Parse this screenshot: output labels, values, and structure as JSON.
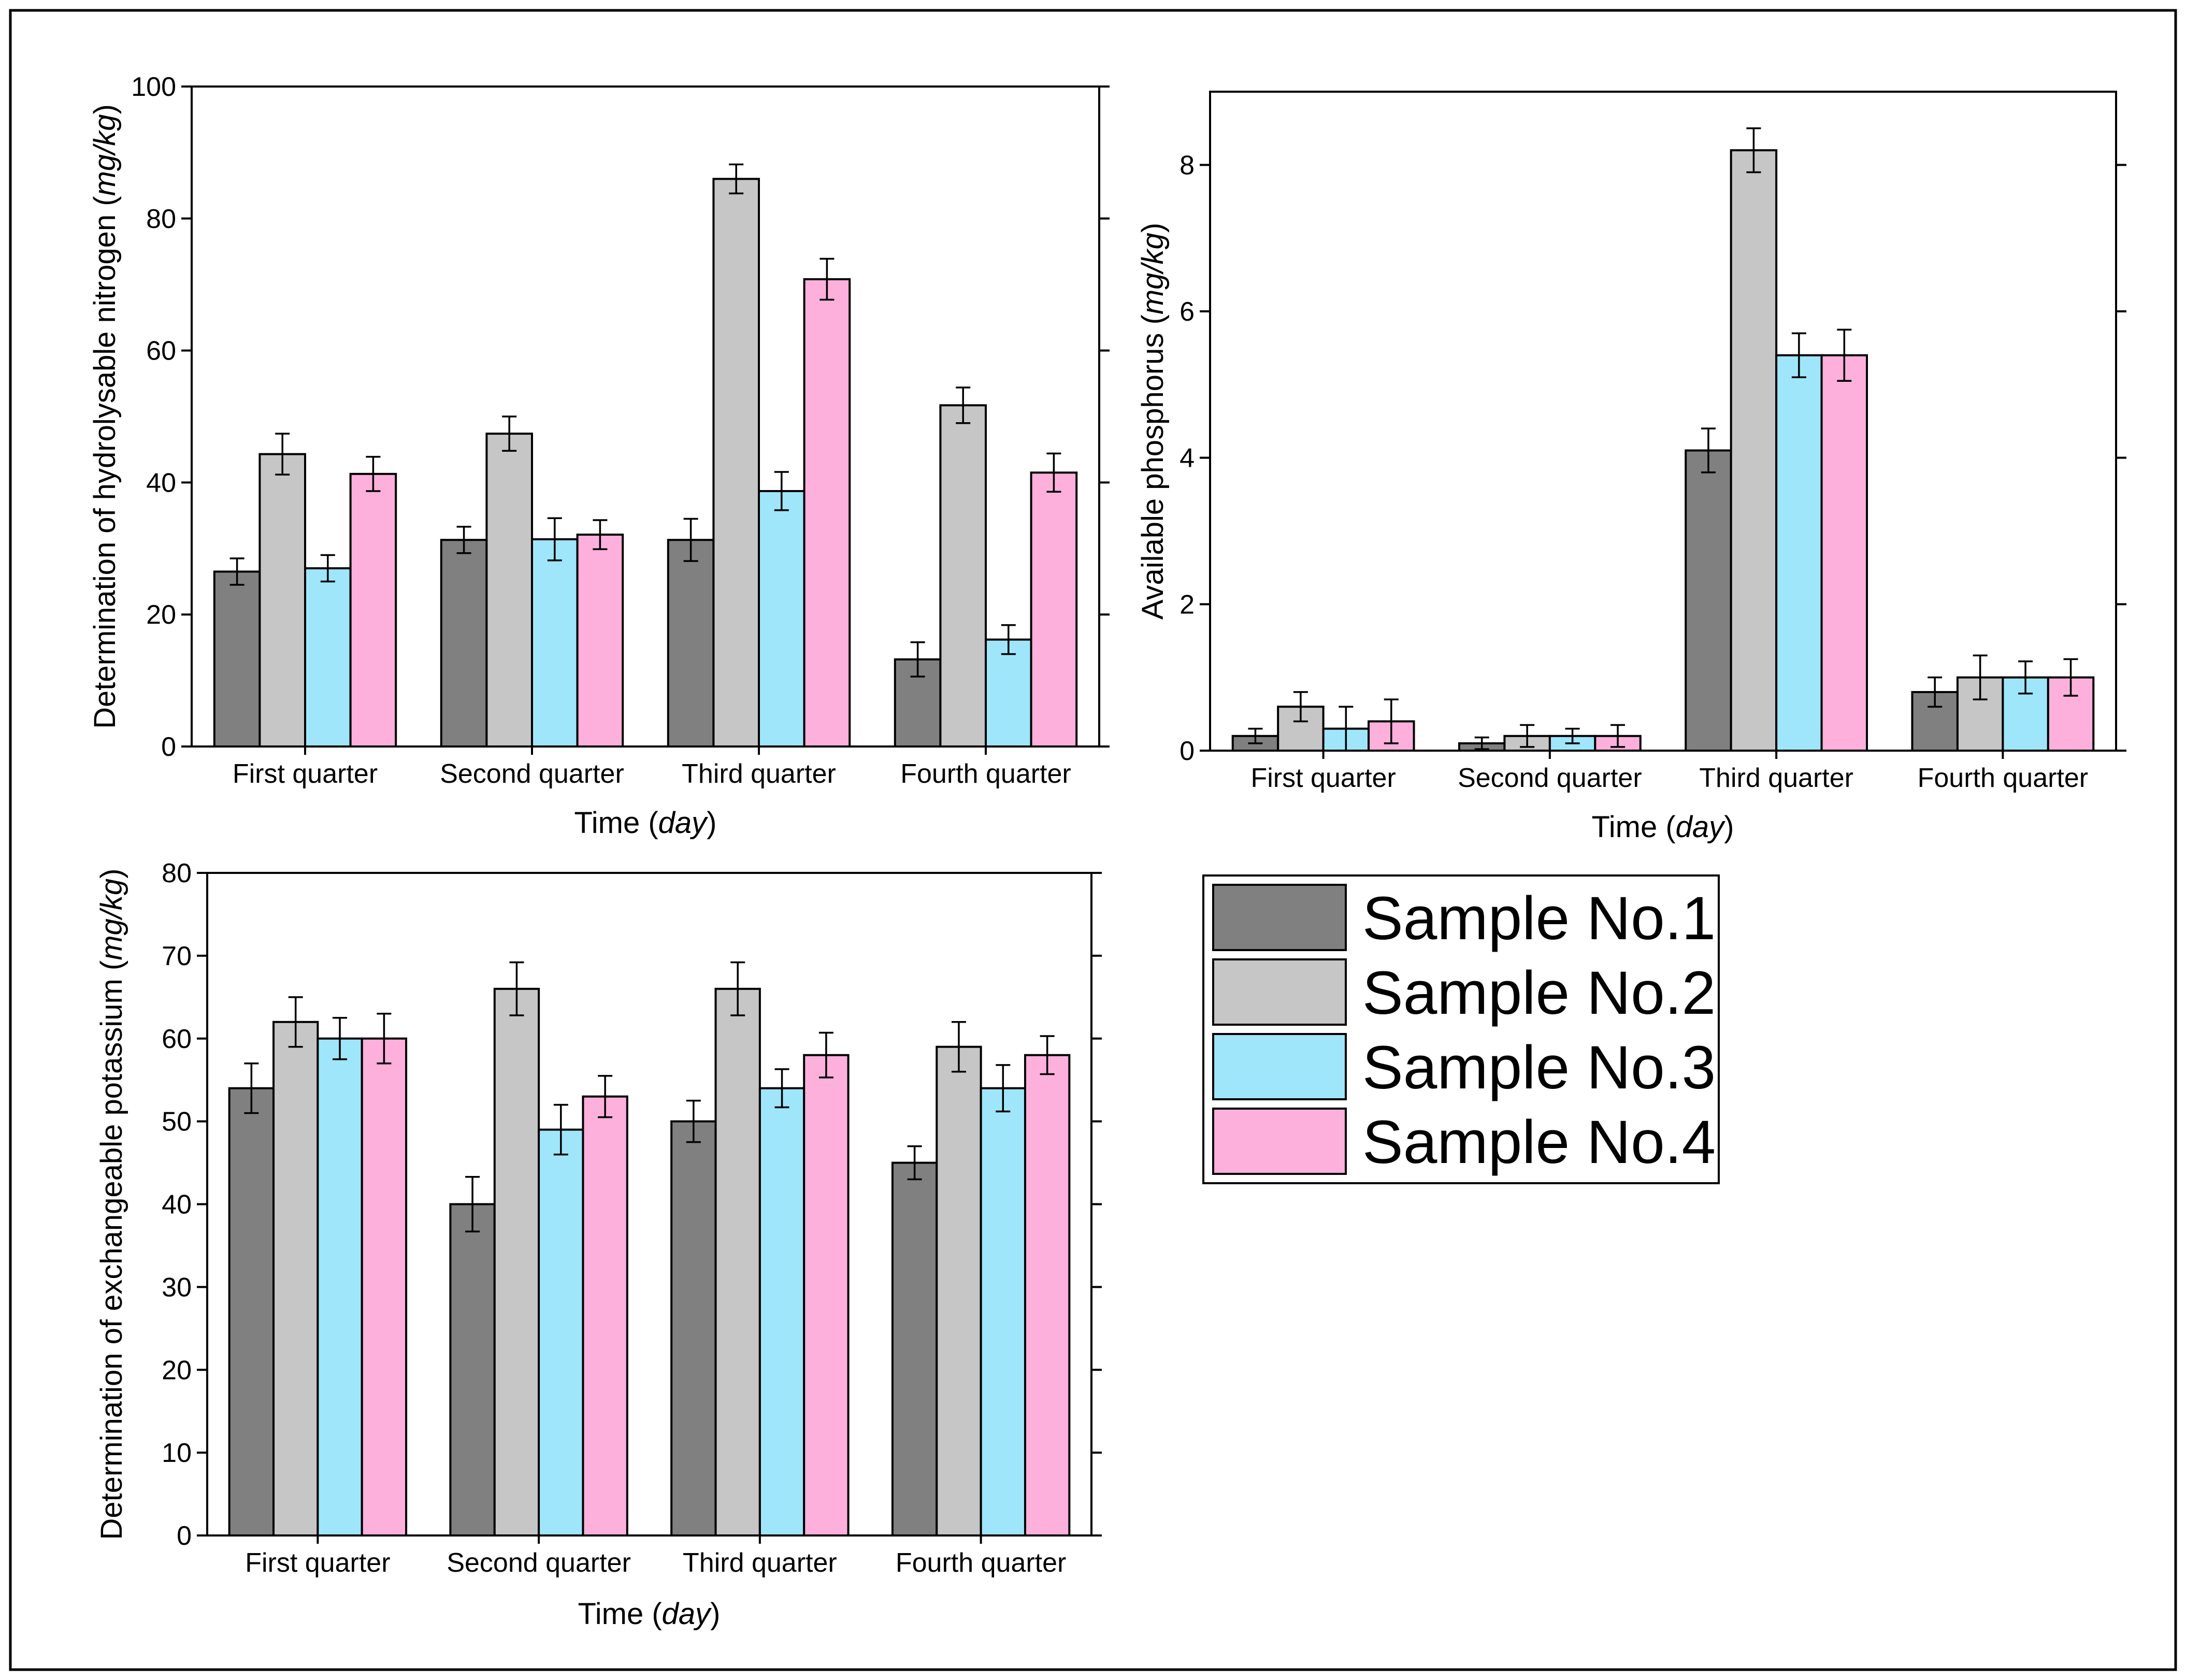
{
  "figure": {
    "frame": "outer-border"
  },
  "legend": {
    "title": "",
    "entries": [
      {
        "label": "Sample No.1",
        "color": "#808080"
      },
      {
        "label": "Sample No.2",
        "color": "#c6c6c6"
      },
      {
        "label": "Sample No.3",
        "color": "#9fe6fb"
      },
      {
        "label": "Sample No.4",
        "color": "#fdb0dc"
      }
    ]
  },
  "chart_data": [
    {
      "id": "nitrogen",
      "type": "bar",
      "title": "",
      "xlabel": "Time",
      "xlabel_unit": "day",
      "ylabel": "Determination of hydrolysable nitrogen",
      "ylabel_unit": "mg/kg",
      "categories": [
        "First quarter",
        "Second quarter",
        "Third quarter",
        "Fourth quarter"
      ],
      "ylim": [
        0,
        100
      ],
      "yticks": [
        0,
        20,
        40,
        60,
        80,
        100
      ],
      "series": [
        {
          "name": "Sample No.1",
          "values": [
            26.5,
            31.3,
            31.3,
            13.2
          ],
          "errors": [
            2.0,
            2.0,
            3.2,
            2.6
          ]
        },
        {
          "name": "Sample No.2",
          "values": [
            44.3,
            47.4,
            86.0,
            51.7
          ],
          "errors": [
            3.1,
            2.6,
            2.2,
            2.7
          ]
        },
        {
          "name": "Sample No.3",
          "values": [
            27.0,
            31.4,
            38.7,
            16.2
          ],
          "errors": [
            2.0,
            3.2,
            2.9,
            2.2
          ]
        },
        {
          "name": "Sample No.4",
          "values": [
            41.3,
            32.1,
            70.8,
            41.5
          ],
          "errors": [
            2.6,
            2.2,
            3.1,
            2.9
          ]
        }
      ]
    },
    {
      "id": "phosphorus",
      "type": "bar",
      "title": "",
      "xlabel": "Time",
      "xlabel_unit": "day",
      "ylabel": "Available phosphorus",
      "ylabel_unit": "mg/kg",
      "categories": [
        "First quarter",
        "Second quarter",
        "Third quarter",
        "Fourth quarter"
      ],
      "ylim": [
        0,
        9
      ],
      "yticks": [
        0,
        2,
        4,
        6,
        8
      ],
      "series": [
        {
          "name": "Sample No.1",
          "values": [
            0.2,
            0.1,
            4.1,
            0.8
          ],
          "errors": [
            0.1,
            0.08,
            0.3,
            0.2
          ]
        },
        {
          "name": "Sample No.2",
          "values": [
            0.6,
            0.2,
            8.2,
            1.0
          ],
          "errors": [
            0.2,
            0.15,
            0.3,
            0.3
          ]
        },
        {
          "name": "Sample No.3",
          "values": [
            0.3,
            0.2,
            5.4,
            1.0
          ],
          "errors": [
            0.3,
            0.1,
            0.3,
            0.22
          ]
        },
        {
          "name": "Sample No.4",
          "values": [
            0.4,
            0.2,
            5.4,
            1.0
          ],
          "errors": [
            0.3,
            0.15,
            0.35,
            0.25
          ]
        }
      ]
    },
    {
      "id": "potassium",
      "type": "bar",
      "title": "",
      "xlabel": "Time",
      "xlabel_unit": "day",
      "ylabel": "Determination of exchangeable potassium",
      "ylabel_unit": "mg/kg",
      "categories": [
        "First quarter",
        "Second quarter",
        "Third quarter",
        "Fourth quarter"
      ],
      "ylim": [
        0,
        80
      ],
      "yticks": [
        0,
        10,
        20,
        30,
        40,
        50,
        60,
        70,
        80
      ],
      "series": [
        {
          "name": "Sample No.1",
          "values": [
            54,
            40,
            50,
            45
          ],
          "errors": [
            3.0,
            3.3,
            2.5,
            2.0
          ]
        },
        {
          "name": "Sample No.2",
          "values": [
            62,
            66,
            66,
            59
          ],
          "errors": [
            3.0,
            3.2,
            3.2,
            3.0
          ]
        },
        {
          "name": "Sample No.3",
          "values": [
            60,
            49,
            54,
            54
          ],
          "errors": [
            2.5,
            3.0,
            2.3,
            2.8
          ]
        },
        {
          "name": "Sample No.4",
          "values": [
            60,
            53,
            58,
            58
          ],
          "errors": [
            3.0,
            2.5,
            2.7,
            2.3
          ]
        }
      ]
    }
  ]
}
